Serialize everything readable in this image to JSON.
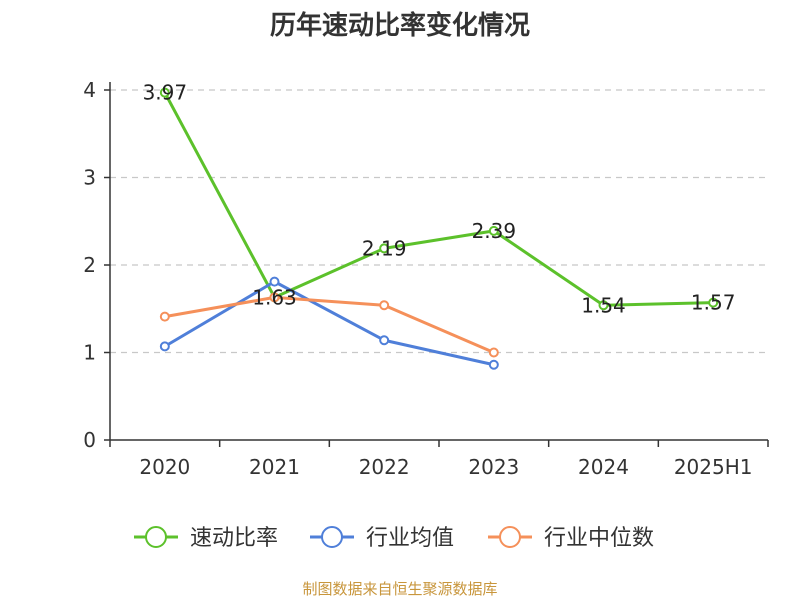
{
  "chart_data": {
    "type": "line",
    "title": "历年速动比率变化情况",
    "categories": [
      "2020",
      "2021",
      "2022",
      "2023",
      "2024",
      "2025H1"
    ],
    "ylim": [
      0,
      4
    ],
    "yticks": [
      0,
      1,
      2,
      3,
      4
    ],
    "grid": true,
    "legend_position": "bottom",
    "series": [
      {
        "name": "速动比率",
        "color": "#5cc12b",
        "values": [
          3.97,
          1.63,
          2.19,
          2.39,
          1.54,
          1.57
        ],
        "labels": [
          "3.97",
          "1.63",
          "2.19",
          "2.39",
          "1.54",
          "1.57"
        ]
      },
      {
        "name": "行业均值",
        "color": "#4f7fd9",
        "values": [
          1.07,
          1.81,
          1.14,
          0.86,
          null,
          null
        ]
      },
      {
        "name": "行业中位数",
        "color": "#f5905a",
        "values": [
          1.41,
          1.63,
          1.54,
          1.0,
          null,
          null
        ]
      }
    ]
  },
  "source": "制图数据来自恒生聚源数据库"
}
